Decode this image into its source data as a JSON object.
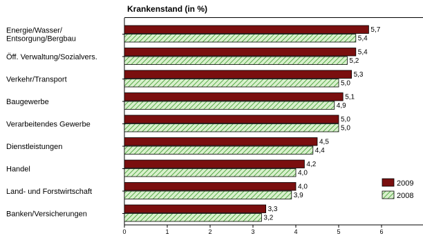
{
  "chart_data": {
    "type": "bar",
    "orientation": "horizontal",
    "title": "Krankenstand (in %)",
    "xlabel": "",
    "ylabel": "",
    "xlim": [
      0,
      6
    ],
    "x_ticks": [
      0,
      1,
      2,
      3,
      4,
      5,
      6
    ],
    "grid": false,
    "legend_position": "right",
    "categories": [
      [
        "Energie/Wasser/",
        "Entsorgung/Bergbau"
      ],
      [
        "Öff. Verwaltung/Sozialvers."
      ],
      [
        "Verkehr/Transport"
      ],
      [
        "Baugewerbe"
      ],
      [
        "Verarbeitendes Gewerbe"
      ],
      [
        "Dienstleistungen"
      ],
      [
        "Handel"
      ],
      [
        "Land- und Forstwirtschaft"
      ],
      [
        "Banken/Versicherungen"
      ]
    ],
    "series": [
      {
        "name": "2009",
        "color": "#7a0f0f",
        "pattern": "solid",
        "values": [
          5.7,
          5.4,
          5.3,
          5.1,
          5.0,
          4.5,
          4.2,
          4.0,
          3.3
        ],
        "labels": [
          "5,7",
          "5,4",
          "5,3",
          "5,1",
          "5,0",
          "4,5",
          "4,2",
          "4,0",
          "3,3"
        ]
      },
      {
        "name": "2008",
        "color": "#3a9a2a",
        "pattern": "hatched",
        "values": [
          5.4,
          5.2,
          5.0,
          4.9,
          5.0,
          4.4,
          4.0,
          3.9,
          3.2
        ],
        "labels": [
          "5,4",
          "5,2",
          "5,0",
          "4,9",
          "5,0",
          "4,4",
          "4,0",
          "3,9",
          "3,2"
        ]
      }
    ]
  }
}
